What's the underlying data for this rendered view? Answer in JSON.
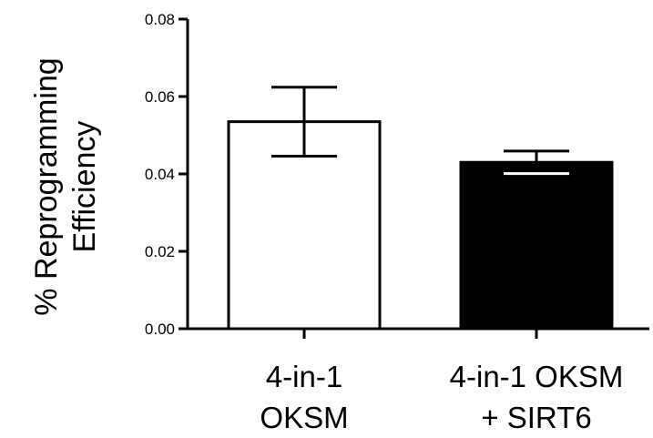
{
  "chart_data": {
    "type": "bar",
    "title": "",
    "xlabel": "",
    "ylabel_lines": [
      "% Reprogramming",
      "Efficiency"
    ],
    "categories": [
      {
        "lines": [
          "4-in-1",
          "OKSM"
        ]
      },
      {
        "lines": [
          "4-in-1 OKSM",
          "+ SIRT6"
        ]
      }
    ],
    "series": [
      {
        "values": [
          0.0535,
          0.043
        ],
        "error": [
          0.0089,
          0.0029
        ],
        "fill_colors": [
          "#ffffff",
          "#000000"
        ]
      }
    ],
    "ylim": [
      0,
      0.08
    ],
    "yticks": [
      "0.00",
      "0.02",
      "0.04",
      "0.06",
      "0.08"
    ],
    "grid": false,
    "legend": "none"
  }
}
